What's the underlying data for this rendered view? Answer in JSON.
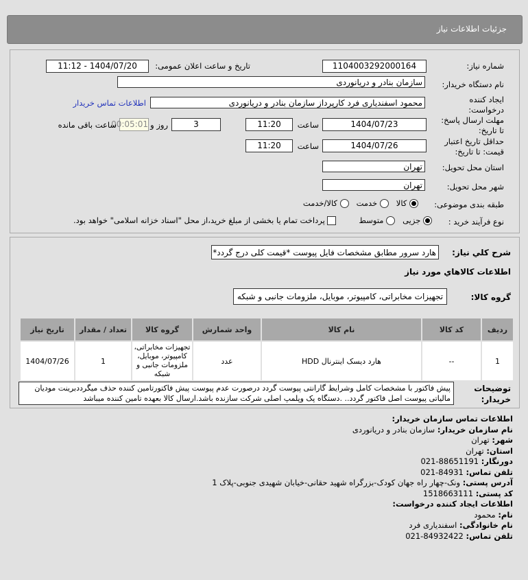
{
  "header": {
    "title": "جزئیات اطلاعات نیاز"
  },
  "form": {
    "need_number_label": "شماره نیاز:",
    "need_number": "1104003292000164",
    "announce_label": "تاریخ و ساعت اعلان عمومی:",
    "announce_value": "1404/07/20 - 11:12",
    "buyer_label": "نام دستگاه خریدار:",
    "buyer_value": "سازمان بنادر و دریانوردی",
    "creator_label_1": "ایجاد کننده",
    "creator_label_2": "درخواست:",
    "creator_value": "محمود اسفندیاری فرد کارپرداز سازمان بنادر و دریانوردی",
    "contact_link": "اطلاعات تماس خریدار",
    "deadline_label_1": "مهلت ارسال پاسخ:",
    "deadline_label_2": "تا تاریخ:",
    "deadline_date": "1404/07/23",
    "time_label": "ساعت",
    "deadline_time": "11:20",
    "days": "3",
    "days_label": "روز و",
    "remaining": "00:05:01",
    "remaining_label": "ساعت باقی مانده",
    "validity_label_1": "حداقل تاریخ اعتبار",
    "validity_label_2": "قیمت: تا تاریخ:",
    "validity_date": "1404/07/26",
    "validity_time": "11:20",
    "province_label": "استان محل تحویل:",
    "province": "تهران",
    "city_label": "شهر محل تحویل:",
    "city": "تهران",
    "category_label": "طبقه بندی موضوعی:",
    "category_options": [
      "کالا",
      "خدمت",
      "کالا/خدمت"
    ],
    "category_selected": "کالا",
    "process_label": "نوع فرآیند خرید :",
    "process_options": [
      "جزیی",
      "متوسط"
    ],
    "process_selected": "جزیی",
    "payment_note": "پرداخت تمام یا بخشی از مبلغ خرید،از محل \"اسناد خزانه اسلامی\" خواهد بود.",
    "payment_checked": false
  },
  "details": {
    "summary_label": "شرح کلي نياز:",
    "summary": "هارد سرور مطابق مشخصات فایل پیوست *قیمت کلی درج گردد*",
    "goods_title": "اطلاعات کالاهاي مورد نياز",
    "group_label": "گروه کالا:",
    "group": "تجهیزات مخابراتی، کامپیوتر، موبایل، ملزومات جانبی و شبکه",
    "table": {
      "headers": [
        "ردیف",
        "کد کالا",
        "نام کالا",
        "واحد شمارش",
        "گروه کالا",
        "تعداد / مقدار",
        "تاریخ نیاز"
      ],
      "rows": [
        [
          "1",
          "--",
          "هارد دیسک اینترنال HDD",
          "عدد",
          "تجهیزات مخابراتی، کامپیوتر، موبایل، ملزومات جانبی و شبکه",
          "1",
          "1404/07/26"
        ]
      ]
    },
    "notes_label_1": "توضیحات",
    "notes_label_2": "خریدار:",
    "notes": "پیش فاکتور با مشخصات کامل وشرایط گارانتی پیوست گردد درصورت عدم پیوست پیش فاکتورتامین کننده حذف میگرددبرینت مودیان مالیاتی پیوست اصل فاکتور گردد.. .دستگاه پک وپلمپ اصلی شرکت سازنده باشد.ارسال کالا بعهده تامین کننده میباشد"
  },
  "contact": {
    "title": "اطلاعات تماس سازمان خریدار:",
    "org_label": "نام سازمان خریدار:",
    "org": "سازمان بنادر و دریانوردی",
    "city_label": "شهر:",
    "city": "تهران",
    "province_label": "استان:",
    "province": "تهران",
    "fax_label": "دورنگار:",
    "fax": "88651191-021",
    "phone_label": "تلفن تماس:",
    "phone": "84931-021",
    "address_label": "آدرس پستی:",
    "address": "ونک-چهار راه جهان کودک-بزرگراه شهید حقانی-خیابان شهیدی جنوبی-پلاک 1",
    "postal_label": "کد پستی:",
    "postal": "1518663111",
    "creator_title": "اطلاعات ایجاد کننده درخواست:",
    "name_label": "نام:",
    "name": "محمود",
    "family_label": "نام خانوادگی:",
    "family": "اسفندیاری فرد",
    "creator_phone_label": "تلفن تماس:",
    "creator_phone": "84932422-021"
  }
}
